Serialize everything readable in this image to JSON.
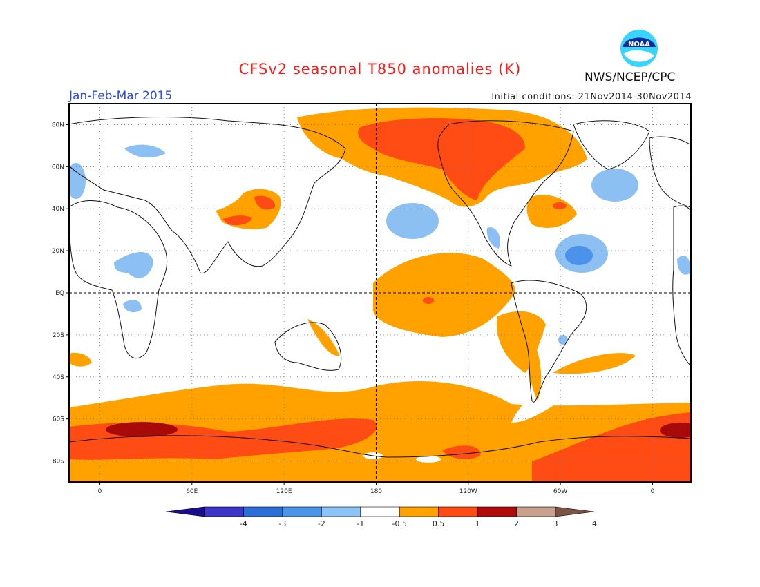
{
  "header": {
    "title": "CFSv2 seasonal T850 anomalies (K)",
    "season": "Jan-Feb-Mar 2015",
    "initial_conditions": "Initial conditions: 21Nov2014-30Nov2014",
    "agency": "NWS/NCEP/CPC",
    "logo_text": "NOAA"
  },
  "axes": {
    "lat_labels": [
      "80N",
      "60N",
      "40N",
      "20N",
      "EQ",
      "20S",
      "40S",
      "60S",
      "80S"
    ],
    "lat_values": [
      80,
      60,
      40,
      20,
      0,
      -20,
      -40,
      -60,
      -80
    ],
    "lon_labels": [
      "0",
      "60E",
      "120E",
      "180",
      "120W",
      "60W",
      "0"
    ],
    "lon_values": [
      0,
      60,
      120,
      180,
      240,
      300,
      360
    ],
    "lon_range": [
      -20,
      385
    ],
    "lat_range": [
      -90,
      90
    ],
    "grid": "dotted",
    "reference_lines": [
      "Equator",
      "180 meridian"
    ]
  },
  "colorbar": {
    "labels": [
      "-4",
      "-3",
      "-2",
      "-1",
      "-0.5",
      "0.5",
      "1",
      "2",
      "3",
      "4"
    ],
    "colors": [
      "#1a0d8c",
      "#3d35c8",
      "#2b6fd6",
      "#4a95ea",
      "#8cc4f5",
      "#ffffff",
      "#ffa200",
      "#ff4b14",
      "#b00b0b",
      "#c8a08c",
      "#7a5246"
    ]
  },
  "palette": {
    "neg_light": "#8cc0f2",
    "neg_mid": "#4a92ea",
    "pos_1": "#ffa200",
    "pos_2": "#ff4b14",
    "pos_3": "#a80a0a"
  }
}
